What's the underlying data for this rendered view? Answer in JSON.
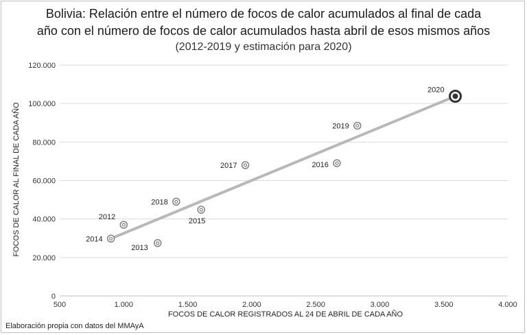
{
  "title": {
    "line1": "Bolivia: Relación entre el número de focos de calor acumulados al final de cada",
    "line2": "año con el número de focos de calor acumulados hasta abril de esos mismos años",
    "subtitle": "(2012-2019 y estimación para 2020)"
  },
  "footnote": "Elaboración propia con datos del MMAyA",
  "chart_data": {
    "type": "scatter",
    "xlabel": "FOCOS DE CALOR REGISTRADOS AL 24 DE ABRIL DE CADA AÑO",
    "ylabel": "FOCOS DE CALOR AL FINAL DE CADA AÑO",
    "xlim": [
      500,
      4000
    ],
    "ylim": [
      0,
      120000
    ],
    "x_ticks": [
      500,
      1000,
      1500,
      2000,
      2500,
      3000,
      3500,
      4000
    ],
    "x_tick_labels": [
      "500",
      "1.000",
      "1.500",
      "2.000",
      "2.500",
      "3.000",
      "3.500",
      "4.000"
    ],
    "y_ticks": [
      0,
      20000,
      40000,
      60000,
      80000,
      100000,
      120000
    ],
    "y_tick_labels": [
      "0",
      "20.000",
      "40.000",
      "60.000",
      "80.000",
      "100.000",
      "120.000"
    ],
    "grid": "horizontal",
    "points": [
      {
        "label": "2012",
        "x": 1000,
        "y": 37000
      },
      {
        "label": "2013",
        "x": 1265,
        "y": 27500
      },
      {
        "label": "2014",
        "x": 900,
        "y": 29800
      },
      {
        "label": "2015",
        "x": 1605,
        "y": 44800
      },
      {
        "label": "2016",
        "x": 2665,
        "y": 69000
      },
      {
        "label": "2017",
        "x": 1950,
        "y": 68000
      },
      {
        "label": "2018",
        "x": 1410,
        "y": 49000
      },
      {
        "label": "2019",
        "x": 2825,
        "y": 88500
      },
      {
        "label": "2020",
        "x": 3590,
        "y": 103800,
        "highlight": true
      }
    ],
    "trendline": {
      "x": [
        900,
        3590
      ],
      "y": [
        29800,
        103800
      ]
    },
    "colors": {
      "trendline": "#b8b8b8",
      "marker": "#7f7f7f",
      "highlight": "#333333",
      "grid": "#d9d9d9"
    }
  }
}
